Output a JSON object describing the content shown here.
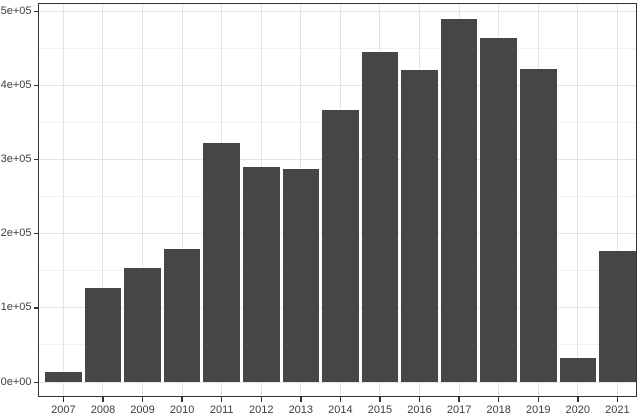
{
  "chart_data": {
    "type": "bar",
    "title": "",
    "xlabel": "",
    "ylabel": "",
    "categories": [
      "2007",
      "2008",
      "2009",
      "2010",
      "2011",
      "2012",
      "2013",
      "2014",
      "2015",
      "2016",
      "2017",
      "2018",
      "2019",
      "2020",
      "2021"
    ],
    "values": [
      13000,
      127000,
      153000,
      179000,
      322000,
      290000,
      287000,
      367000,
      445000,
      421000,
      489000,
      463000,
      422000,
      32000,
      176000
    ],
    "y_axis": {
      "ticks": [
        {
          "value": 0,
          "label": "0e+00"
        },
        {
          "value": 100000,
          "label": "1e+05"
        },
        {
          "value": 200000,
          "label": "2e+05"
        },
        {
          "value": 300000,
          "label": "3e+05"
        },
        {
          "value": 400000,
          "label": "4e+05"
        },
        {
          "value": 500000,
          "label": "5e+05"
        }
      ],
      "minor_values": [
        50000,
        150000,
        250000,
        350000,
        450000
      ]
    },
    "ylim": [
      -21000,
      510000
    ],
    "grid": "h-major+h-minor+v-major",
    "legend_position": "none",
    "style": "ggplot theme_bw bar chart, no title, no axis titles",
    "colors": {
      "bar_fill": "#464646",
      "panel_border": "#333333",
      "grid_major": "#E4E4E4",
      "grid_minor": "#F2F2F2",
      "tick_mark": "#333333",
      "axis_text": "#404040",
      "background": "#FFFFFF"
    }
  }
}
